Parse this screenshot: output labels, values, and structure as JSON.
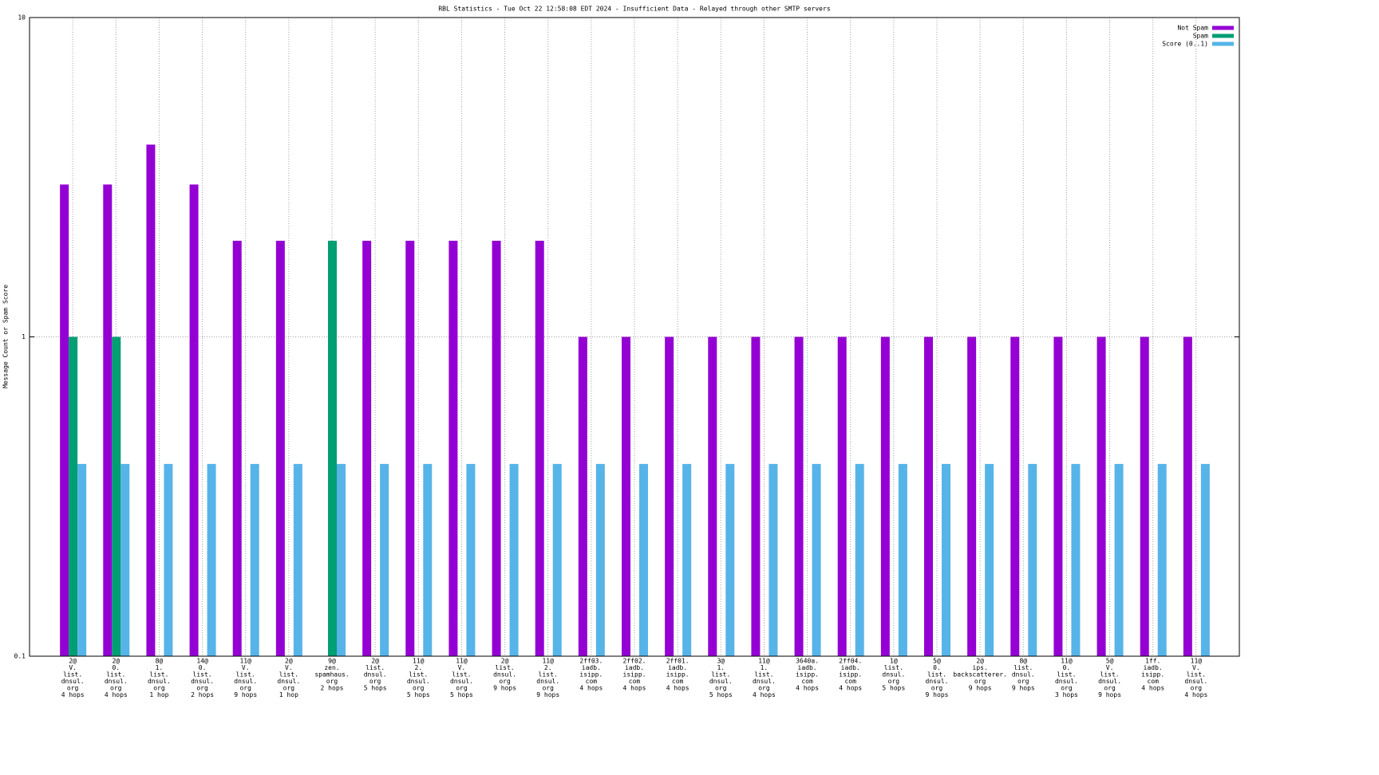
{
  "chart_data": {
    "type": "bar",
    "title": "RBL Statistics - Tue Oct 22 12:58:08 EDT 2024 - Insufficient Data - Relayed through other SMTP servers",
    "y_label": "Message Count or Spam Score",
    "log_scale": true,
    "grid": true,
    "legend": "top-right",
    "ylim": [
      0.1,
      10
    ],
    "yticks": [
      0.1,
      1,
      10
    ],
    "categories": [
      [
        "2@",
        "V.",
        "list.",
        "dnsul.",
        "org",
        "4 hops"
      ],
      [
        "2@",
        "0.",
        "list.",
        "dnsul.",
        "org",
        "4 hops"
      ],
      [
        "8@",
        "1.",
        "list.",
        "dnsul.",
        "org",
        "1 hop"
      ],
      [
        "14@",
        "0.",
        "list.",
        "dnsul.",
        "org",
        "2 hops"
      ],
      [
        "11@",
        "V.",
        "list.",
        "dnsul.",
        "org",
        "9 hops"
      ],
      [
        "2@",
        "V.",
        "list.",
        "dnsul.",
        "org",
        "1 hop"
      ],
      [
        "9@",
        "zen.",
        "spamhaus.",
        "org",
        "2 hops"
      ],
      [
        "2@",
        "list.",
        "dnsul.",
        "org",
        "5 hops"
      ],
      [
        "11@",
        "2.",
        "list.",
        "dnsul.",
        "org",
        "5 hops"
      ],
      [
        "11@",
        "V.",
        "list.",
        "dnsul.",
        "org",
        "5 hops"
      ],
      [
        "2@",
        "list.",
        "dnsul.",
        "org",
        "9 hops"
      ],
      [
        "11@",
        "2.",
        "list.",
        "dnsul.",
        "org",
        "9 hops"
      ],
      [
        "2ff03.",
        "iadb.",
        "isipp.",
        "com",
        "4 hops"
      ],
      [
        "2ff02.",
        "iadb.",
        "isipp.",
        "com",
        "4 hops"
      ],
      [
        "2ff01.",
        "iadb.",
        "isipp.",
        "com",
        "4 hops"
      ],
      [
        "3@",
        "1.",
        "list.",
        "dnsul.",
        "org",
        "5 hops"
      ],
      [
        "11@",
        "1.",
        "list.",
        "dnsul.",
        "org",
        "4 hops"
      ],
      [
        "3640a.",
        "iadb.",
        "isipp.",
        "com",
        "4 hops"
      ],
      [
        "2ff04.",
        "iadb.",
        "isipp.",
        "com",
        "4 hops"
      ],
      [
        "1@",
        "list.",
        "dnsul.",
        "org",
        "5 hops"
      ],
      [
        "5@",
        "0.",
        "list.",
        "dnsul.",
        "org",
        "9 hops"
      ],
      [
        "2@",
        "ips.",
        "backscatterer.",
        "org",
        "9 hops"
      ],
      [
        "8@",
        "list.",
        "dnsul.",
        "org",
        "9 hops"
      ],
      [
        "11@",
        "0.",
        "list.",
        "dnsul.",
        "org",
        "3 hops"
      ],
      [
        "5@",
        "V.",
        "list.",
        "dnsul.",
        "org",
        "9 hops"
      ],
      [
        "1ff.",
        "iadb.",
        "isipp.",
        "com",
        "4 hops"
      ],
      [
        "11@",
        "V.",
        "list.",
        "dnsul.",
        "org",
        "4 hops"
      ]
    ],
    "series": [
      {
        "name": "Not Spam",
        "color": "#9400d3",
        "values": [
          3,
          3,
          4,
          3,
          2,
          2,
          null,
          2,
          2,
          2,
          2,
          2,
          1,
          1,
          1,
          1,
          1,
          1,
          1,
          1,
          1,
          1,
          1,
          1,
          1,
          1,
          1
        ]
      },
      {
        "name": "Spam",
        "color": "#009e73",
        "values": [
          1,
          1,
          null,
          null,
          null,
          null,
          2,
          null,
          null,
          null,
          null,
          null,
          null,
          null,
          null,
          null,
          null,
          null,
          null,
          null,
          null,
          null,
          null,
          null,
          null,
          null,
          null
        ]
      },
      {
        "name": "Score (0..1)",
        "color": "#56b4e9",
        "values": [
          0.4,
          0.4,
          0.4,
          0.4,
          0.4,
          0.4,
          0.4,
          0.4,
          0.4,
          0.4,
          0.4,
          0.4,
          0.4,
          0.4,
          0.4,
          0.4,
          0.4,
          0.4,
          0.4,
          0.4,
          0.4,
          0.4,
          0.4,
          0.4,
          0.4,
          0.4,
          0.4
        ]
      }
    ]
  }
}
